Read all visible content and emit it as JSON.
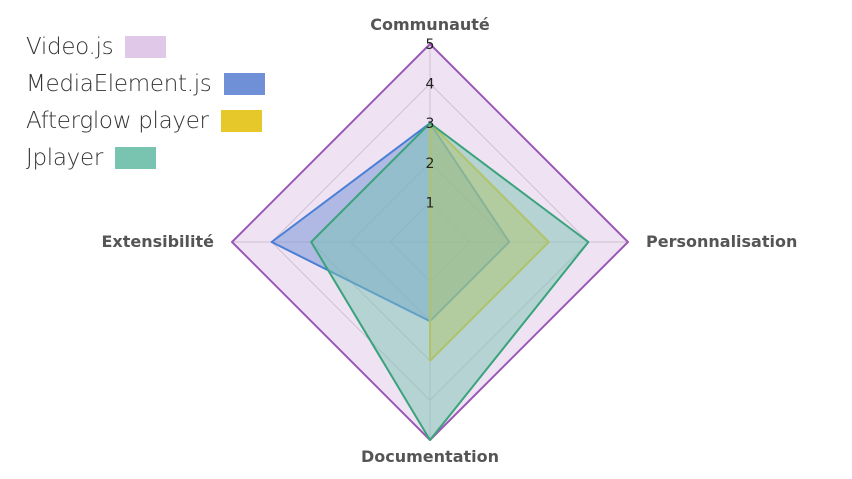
{
  "chart_data": {
    "type": "radar",
    "axes": [
      "Communauté",
      "Personnalisation",
      "Documentation",
      "Extensibilité"
    ],
    "r_ticks": [
      "1",
      "2",
      "3",
      "4",
      "5"
    ],
    "r_max": 5,
    "grid": true,
    "legend_position": "top-left",
    "series": [
      {
        "name": "Video.js",
        "values": [
          5,
          5,
          5,
          5
        ],
        "stroke": "#9b59b6",
        "fill": "#e0c8e8"
      },
      {
        "name": "MediaElement.js",
        "values": [
          3,
          2,
          2,
          4
        ],
        "stroke": "#4a7fd6",
        "fill": "#6f8fd6"
      },
      {
        "name": "Afterglow player",
        "values": [
          3,
          3,
          3,
          0
        ],
        "stroke": "#e6c227",
        "fill": "#e6c82a"
      },
      {
        "name": "Jplayer",
        "values": [
          3,
          4,
          5,
          3
        ],
        "stroke": "#3aa37c",
        "fill": "#79c4b1"
      }
    ]
  }
}
